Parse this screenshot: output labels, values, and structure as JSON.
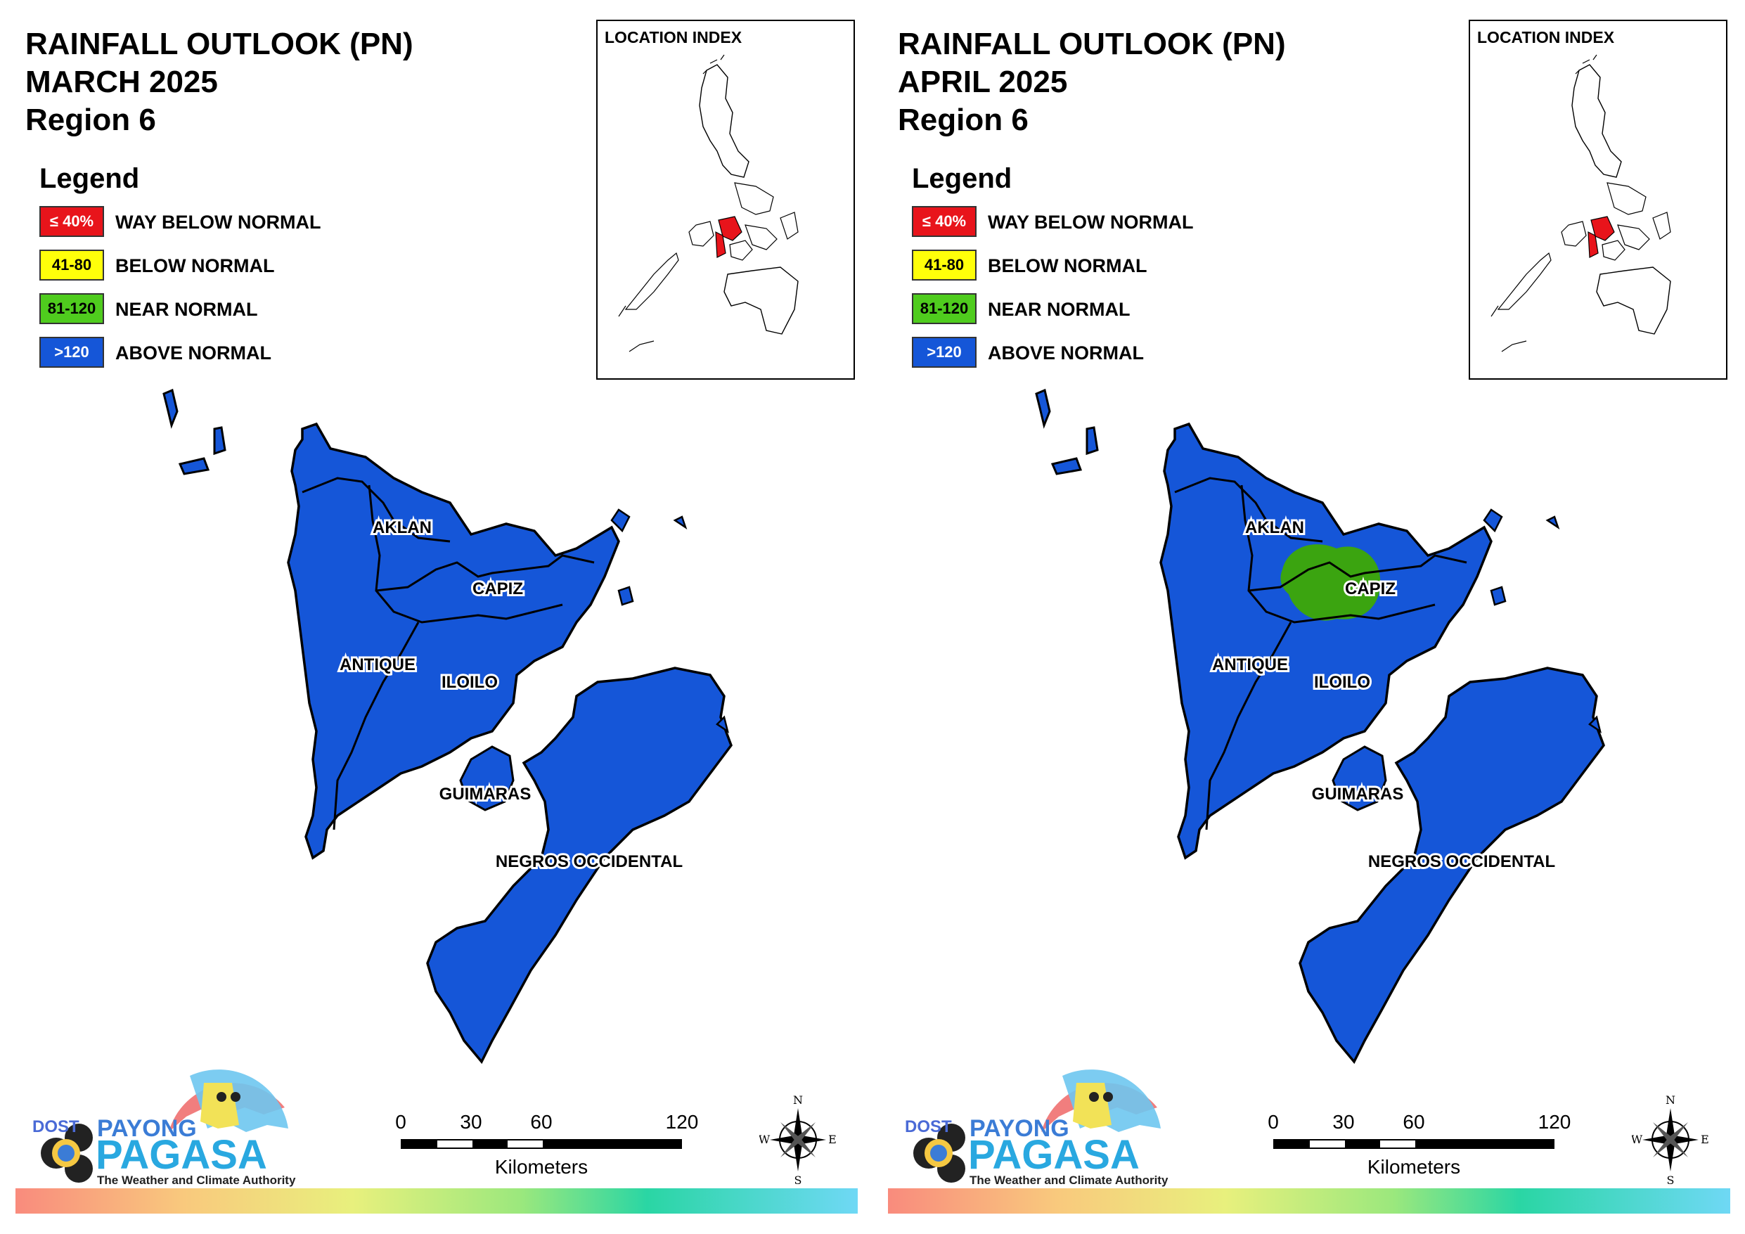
{
  "colors": {
    "way_below_normal": "#e8141b",
    "below_normal": "#ffff0a",
    "near_normal": "#4fcc1e",
    "above_normal": "#1556d8",
    "near_normal_area": "#3ba410",
    "province_fill": "#1556d8"
  },
  "legend": {
    "title": "Legend",
    "items": [
      {
        "range": "≤ 40%",
        "label": "WAY BELOW NORMAL",
        "color": "#e8141b",
        "text_color": "#ffffff"
      },
      {
        "range": "41-80",
        "label": "BELOW NORMAL",
        "color": "#ffff0a",
        "text_color": "#000000"
      },
      {
        "range": "81-120",
        "label": "NEAR NORMAL",
        "color": "#4fcc1e",
        "text_color": "#000000"
      },
      {
        "range": ">120",
        "label": "ABOVE NORMAL",
        "color": "#1556d8",
        "text_color": "#ffffff"
      }
    ]
  },
  "inset": {
    "title": "LOCATION INDEX"
  },
  "provinces": [
    "AKLAN",
    "CAPIZ",
    "ANTIQUE",
    "ILOILO",
    "GUIMARAS",
    "NEGROS OCCIDENTAL"
  ],
  "scale": {
    "ticks": [
      "0",
      "30",
      "60",
      "120"
    ],
    "unit": "Kilometers"
  },
  "compass": {
    "n": "N",
    "s": "S",
    "e": "E",
    "w": "W"
  },
  "logo": {
    "dost": "DOST",
    "payong": "PAYONG",
    "pagasa": "PAGASA",
    "tagline": "The Weather and Climate Authority"
  },
  "panels": [
    {
      "title_line1": "RAINFALL OUTLOOK (PN)",
      "title_line2": "MARCH 2025",
      "title_line3": "Region 6",
      "near_normal_area": false
    },
    {
      "title_line1": "RAINFALL OUTLOOK (PN)",
      "title_line2": "APRIL 2025",
      "title_line3": "Region 6",
      "near_normal_area": true
    }
  ]
}
